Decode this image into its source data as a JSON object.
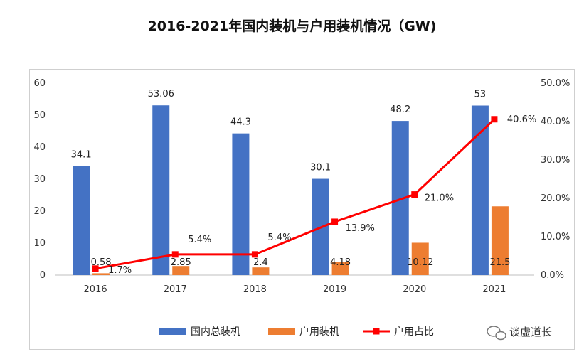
{
  "chart_data": {
    "type": "bar+line",
    "title": "2016-2021年国内装机与户用装机情况（GW)",
    "categories": [
      "2016",
      "2017",
      "2018",
      "2019",
      "2020",
      "2021"
    ],
    "series": [
      {
        "name": "国内总装机",
        "type": "bar",
        "axis": "left",
        "color": "#4472c4",
        "values": [
          34.1,
          53.06,
          44.3,
          30.1,
          48.2,
          53
        ],
        "labels": [
          "34.1",
          "53.06",
          "44.3",
          "30.1",
          "48.2",
          "53"
        ]
      },
      {
        "name": "户用装机",
        "type": "bar",
        "axis": "left",
        "color": "#ed7d31",
        "values": [
          0.58,
          2.85,
          2.4,
          4.18,
          10.12,
          21.5
        ],
        "labels": [
          "0.58",
          "2.85",
          "2.4",
          "4.18",
          "10.12",
          "21.5"
        ]
      },
      {
        "name": "户用占比",
        "type": "line",
        "axis": "right",
        "color": "#ff0000",
        "values": [
          1.7,
          5.4,
          5.4,
          13.9,
          21.0,
          40.6
        ],
        "labels": [
          "1.7%",
          "5.4%",
          "5.4%",
          "13.9%",
          "21.0%",
          "40.6%"
        ]
      }
    ],
    "y_left": {
      "min": 0,
      "max": 60,
      "ticks": [
        "0",
        "10",
        "20",
        "30",
        "40",
        "50",
        "60"
      ]
    },
    "y_right": {
      "min": 0,
      "max": 50,
      "ticks": [
        "0.0%",
        "10.0%",
        "20.0%",
        "30.0%",
        "40.0%",
        "50.0%"
      ]
    },
    "legend_position": "bottom",
    "grid": false
  },
  "watermark": "谈虚道长"
}
